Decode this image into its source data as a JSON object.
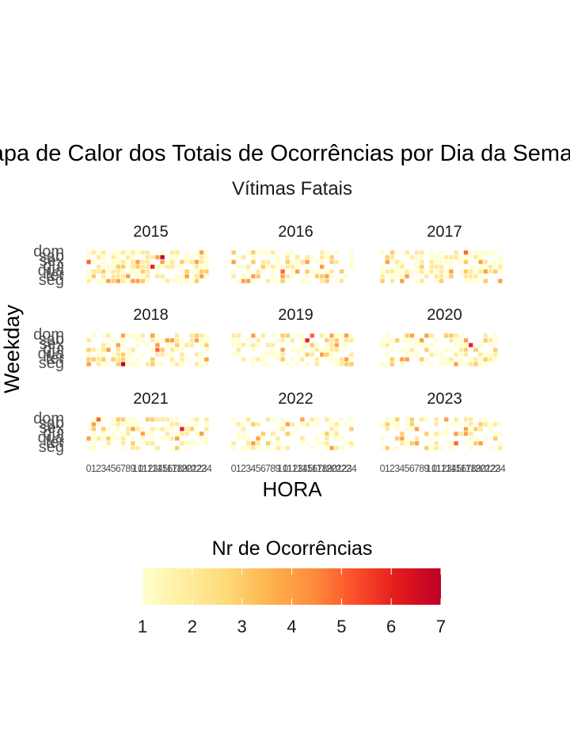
{
  "chart_data": {
    "type": "heatmap",
    "title": "Mapa de Calor dos Totais de Ocorrências por Dia da Semana",
    "subtitle": "Vítimas Fatais",
    "xlabel": "HORA",
    "ylabel": "Weekday",
    "x_ticks": [
      "0",
      "1",
      "2",
      "3",
      "4",
      "5",
      "6",
      "7",
      "8",
      "9",
      "10",
      "11",
      "12",
      "13",
      "14",
      "15",
      "16",
      "17",
      "18",
      "19",
      "20",
      "21",
      "22",
      "23",
      "24"
    ],
    "y_ticks": [
      "dom",
      "sab",
      "sex",
      "qui",
      "qua",
      "ter",
      "seg"
    ],
    "facets": [
      "2015",
      "2016",
      "2017",
      "2018",
      "2019",
      "2020",
      "2021",
      "2022",
      "2023"
    ],
    "facet_density": [
      0.75,
      0.55,
      0.6,
      0.7,
      0.6,
      0.55,
      0.55,
      0.45,
      0.45
    ],
    "facet_cells": [
      [
        [
          0,
          2,
          5
        ],
        [
          1,
          0,
          2
        ],
        [
          6,
          3,
          3
        ],
        [
          13,
          3,
          6
        ],
        [
          14,
          1,
          4
        ],
        [
          15,
          1,
          7
        ]
      ],
      [
        [
          3,
          6,
          4
        ],
        [
          4,
          5,
          4
        ],
        [
          10,
          4,
          5
        ],
        [
          15,
          4,
          3
        ]
      ],
      [
        [
          5,
          5,
          4
        ],
        [
          10,
          2,
          2
        ],
        [
          14,
          4,
          4
        ],
        [
          17,
          0,
          5
        ]
      ],
      [
        [
          7,
          6,
          7
        ],
        [
          14,
          3,
          5
        ],
        [
          13,
          0,
          4
        ]
      ],
      [
        [
          15,
          1,
          6
        ],
        [
          16,
          0,
          5
        ],
        [
          10,
          3,
          4
        ]
      ],
      [
        [
          8,
          1,
          4
        ],
        [
          18,
          2,
          6
        ],
        [
          17,
          1,
          4
        ]
      ],
      [
        [
          2,
          0,
          5
        ],
        [
          19,
          2,
          6
        ],
        [
          18,
          4,
          4
        ]
      ],
      [
        [
          4,
          1,
          3
        ],
        [
          11,
          3,
          3
        ]
      ],
      [
        [
          15,
          5,
          5
        ],
        [
          17,
          3,
          4
        ],
        [
          6,
          0,
          3
        ]
      ]
    ],
    "legend": {
      "title": "Nr de Ocorrências",
      "ticks": [
        "1",
        "2",
        "3",
        "4",
        "5",
        "6",
        "7"
      ],
      "min": 1,
      "max": 7,
      "colors": [
        "#ffffcc",
        "#ffeda0",
        "#fed976",
        "#feb24c",
        "#fd8d3c",
        "#fc4e2a",
        "#e31a1c",
        "#bd0026"
      ]
    },
    "grid": false,
    "legend_position": "bottom"
  }
}
